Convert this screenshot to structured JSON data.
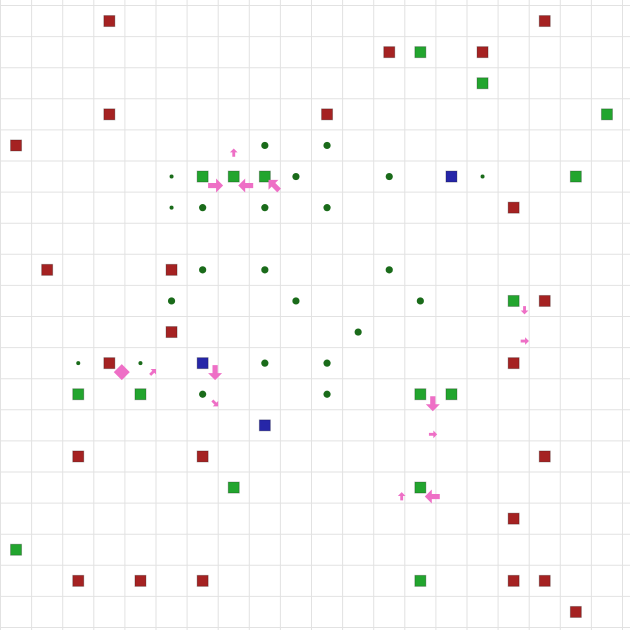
{
  "colors": {
    "background": "#ffffff",
    "grid_line": "#e2e2e2",
    "red_block": "#a52222",
    "green_block": "#22a52e",
    "blue_block": "#2626a8",
    "dot": "#1a6b1a",
    "arrow": "#ee6fc6"
  },
  "grid": {
    "columns": 20,
    "rows": 20
  },
  "red_blocks": [
    [
      3,
      0
    ],
    [
      17,
      0
    ],
    [
      12,
      1
    ],
    [
      15,
      1
    ],
    [
      3,
      3
    ],
    [
      10,
      3
    ],
    [
      0,
      4
    ],
    [
      16,
      6
    ],
    [
      1,
      8
    ],
    [
      5,
      8
    ],
    [
      17,
      9
    ],
    [
      5,
      10
    ],
    [
      3,
      11
    ],
    [
      16,
      11
    ],
    [
      2,
      14
    ],
    [
      6,
      14
    ],
    [
      17,
      14
    ],
    [
      16,
      16
    ],
    [
      2,
      18
    ],
    [
      4,
      18
    ],
    [
      6,
      18
    ],
    [
      16,
      18
    ],
    [
      17,
      18
    ],
    [
      18,
      19
    ]
  ],
  "green_blocks": [
    [
      13,
      1
    ],
    [
      15,
      2
    ],
    [
      19,
      3
    ],
    [
      6,
      5
    ],
    [
      7,
      5
    ],
    [
      8,
      5
    ],
    [
      18,
      5
    ],
    [
      16,
      9
    ],
    [
      2,
      12
    ],
    [
      4,
      12
    ],
    [
      13,
      12
    ],
    [
      14,
      12
    ],
    [
      7,
      15
    ],
    [
      13,
      15
    ],
    [
      0,
      17
    ],
    [
      13,
      18
    ]
  ],
  "blue_blocks": [
    [
      14,
      5
    ],
    [
      6,
      11
    ],
    [
      8,
      13
    ]
  ],
  "dots": [
    {
      "c": 8,
      "r": 4,
      "size": "medium"
    },
    {
      "c": 10,
      "r": 4,
      "size": "medium"
    },
    {
      "c": 5,
      "r": 5,
      "size": "small"
    },
    {
      "c": 9,
      "r": 5,
      "size": "medium"
    },
    {
      "c": 12,
      "r": 5,
      "size": "medium"
    },
    {
      "c": 15,
      "r": 5,
      "size": "small"
    },
    {
      "c": 5,
      "r": 6,
      "size": "small"
    },
    {
      "c": 6,
      "r": 6,
      "size": "medium"
    },
    {
      "c": 8,
      "r": 6,
      "size": "medium"
    },
    {
      "c": 10,
      "r": 6,
      "size": "medium"
    },
    {
      "c": 6,
      "r": 8,
      "size": "medium"
    },
    {
      "c": 8,
      "r": 8,
      "size": "medium"
    },
    {
      "c": 12,
      "r": 8,
      "size": "medium"
    },
    {
      "c": 5,
      "r": 9,
      "size": "medium"
    },
    {
      "c": 9,
      "r": 9,
      "size": "medium"
    },
    {
      "c": 13,
      "r": 9,
      "size": "medium"
    },
    {
      "c": 11,
      "r": 10,
      "size": "medium"
    },
    {
      "c": 2,
      "r": 11,
      "size": "small"
    },
    {
      "c": 4,
      "r": 11,
      "size": "small"
    },
    {
      "c": 8,
      "r": 11,
      "size": "medium"
    },
    {
      "c": 10,
      "r": 11,
      "size": "medium"
    },
    {
      "c": 6,
      "r": 12,
      "size": "medium"
    },
    {
      "c": 10,
      "r": 12,
      "size": "medium"
    }
  ],
  "arrows": [
    {
      "c": 7,
      "r": 4.4,
      "dir": "up",
      "size": "small"
    },
    {
      "c": 6.4,
      "r": 5.45,
      "dir": "right",
      "size": "medium"
    },
    {
      "c": 7.4,
      "r": 5.45,
      "dir": "left",
      "size": "medium"
    },
    {
      "c": 8.3,
      "r": 5.45,
      "dir": "up-left",
      "size": "medium"
    },
    {
      "c": 16.35,
      "r": 9.45,
      "dir": "down",
      "size": "small"
    },
    {
      "c": 16.35,
      "r": 10.45,
      "dir": "right",
      "size": "small"
    },
    {
      "c": 3.4,
      "r": 11.45,
      "dir": "diamond",
      "size": "medium"
    },
    {
      "c": 4.4,
      "r": 11.45,
      "dir": "up-right",
      "size": "small"
    },
    {
      "c": 6.4,
      "r": 11.45,
      "dir": "down",
      "size": "medium"
    },
    {
      "c": 6.4,
      "r": 12.45,
      "dir": "down-right",
      "size": "small"
    },
    {
      "c": 13.4,
      "r": 12.45,
      "dir": "down",
      "size": "medium"
    },
    {
      "c": 13.4,
      "r": 13.45,
      "dir": "right",
      "size": "small"
    },
    {
      "c": 12.4,
      "r": 15.45,
      "dir": "up",
      "size": "small"
    },
    {
      "c": 13.4,
      "r": 15.45,
      "dir": "left",
      "size": "medium"
    }
  ]
}
